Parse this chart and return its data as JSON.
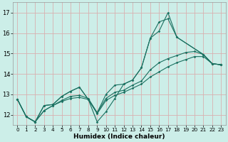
{
  "xlabel": "Humidex (Indice chaleur)",
  "bg_color": "#cceee8",
  "grid_color": "#d8b0b0",
  "line_color": "#1a7060",
  "xlim": [
    -0.5,
    23.5
  ],
  "ylim": [
    11.5,
    17.5
  ],
  "yticks": [
    12,
    13,
    14,
    15,
    16,
    17
  ],
  "xticks": [
    0,
    1,
    2,
    3,
    4,
    5,
    6,
    7,
    8,
    9,
    10,
    11,
    12,
    13,
    14,
    15,
    16,
    17,
    18,
    19,
    20,
    21,
    22,
    23
  ],
  "lines": [
    {
      "x": [
        0,
        1,
        2,
        3,
        4,
        5,
        6,
        7,
        8,
        9,
        10,
        11,
        12,
        13,
        14,
        15,
        16,
        17,
        18,
        21,
        22,
        23
      ],
      "y": [
        12.75,
        11.9,
        11.65,
        12.45,
        12.5,
        12.9,
        13.15,
        13.35,
        12.75,
        11.65,
        12.15,
        12.8,
        13.5,
        13.7,
        14.3,
        15.75,
        16.1,
        17.0,
        15.8,
        14.95,
        14.5,
        14.45
      ]
    },
    {
      "x": [
        0,
        1,
        2,
        3,
        4,
        5,
        6,
        7,
        8,
        9,
        10,
        11,
        12,
        13,
        14,
        15,
        16,
        17,
        18,
        21,
        22,
        23
      ],
      "y": [
        12.75,
        11.9,
        11.65,
        12.45,
        12.5,
        12.9,
        13.15,
        13.35,
        12.75,
        12.1,
        13.0,
        13.45,
        13.5,
        13.7,
        14.3,
        15.75,
        16.55,
        16.7,
        15.8,
        14.95,
        14.5,
        14.45
      ]
    },
    {
      "x": [
        0,
        1,
        2,
        3,
        4,
        5,
        6,
        7,
        8,
        9,
        10,
        11,
        12,
        13,
        14,
        15,
        16,
        17,
        18,
        19,
        20,
        21,
        22,
        23
      ],
      "y": [
        12.75,
        11.9,
        11.65,
        12.2,
        12.45,
        12.7,
        12.9,
        12.95,
        12.8,
        12.1,
        12.8,
        13.1,
        13.2,
        13.45,
        13.65,
        14.2,
        14.55,
        14.75,
        14.9,
        15.05,
        15.1,
        14.95,
        14.5,
        14.45
      ]
    },
    {
      "x": [
        0,
        1,
        2,
        3,
        4,
        5,
        6,
        7,
        8,
        9,
        10,
        11,
        12,
        13,
        14,
        15,
        16,
        17,
        18,
        19,
        20,
        21,
        22,
        23
      ],
      "y": [
        12.75,
        11.9,
        11.65,
        12.2,
        12.45,
        12.65,
        12.8,
        12.85,
        12.75,
        12.05,
        12.7,
        12.95,
        13.1,
        13.3,
        13.5,
        13.85,
        14.1,
        14.35,
        14.55,
        14.7,
        14.85,
        14.85,
        14.5,
        14.45
      ]
    }
  ]
}
